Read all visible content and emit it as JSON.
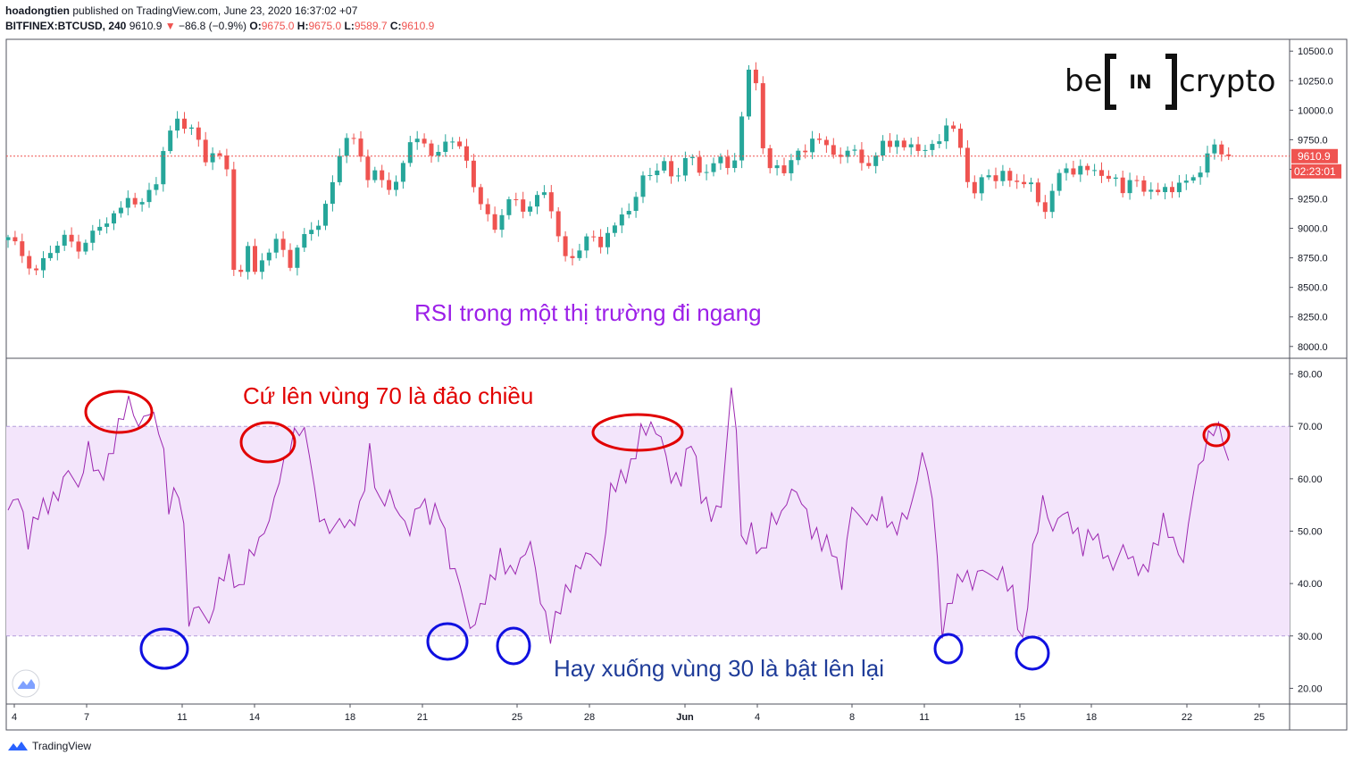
{
  "header": {
    "author": "hoadongtien",
    "published": "published on TradingView.com, June 23, 2020 16:37:02 +07",
    "symbol": "BITFINEX:BTCUSD, 240",
    "last": "9610.9",
    "change_arrow": "▼",
    "change": "−86.8 (−0.9%)",
    "o_label": "O:",
    "o": "9675.0",
    "h_label": "H:",
    "h": "9675.0",
    "l_label": "L:",
    "l": "9589.7",
    "c_label": "C:",
    "c": "9610.9"
  },
  "logo": {
    "left": "be",
    "mid": "IN",
    "right": "crypto"
  },
  "annotations": {
    "title": "RSI trong một thị trường đi ngang",
    "overbought": "Cứ lên vùng 70 là đảo chiều",
    "oversold": "Hay xuống vùng 30 là bật lên lại"
  },
  "footer": {
    "brand": "TradingView"
  },
  "colors": {
    "up": "#26a69a",
    "down": "#ef5350",
    "rsi": "#9c27b0",
    "band": "#f3e5fb",
    "title": "#9c1fe8",
    "red_note": "#e10000",
    "blue_note": "#1f3c99"
  },
  "chart_data": [
    {
      "type": "candlestick",
      "price_label": "9610.9",
      "countdown": "02:23:01",
      "current_price": 9610.9,
      "ylim": [
        7900,
        10600
      ],
      "y_ticks": [
        "10500.0",
        "10250.0",
        "10000.0",
        "9750.0",
        "9500.0",
        "9250.0",
        "9000.0",
        "8750.0",
        "8500.0",
        "8250.0",
        "8000.0"
      ],
      "y_tick_values": [
        10500,
        10250,
        10000,
        9750,
        9500,
        9250,
        9000,
        8750,
        8500,
        8250,
        8000
      ],
      "x_tick_labels": [
        "4",
        "7",
        "11",
        "14",
        "18",
        "21",
        "25",
        "28",
        "Jun",
        "4",
        "8",
        "11",
        "15",
        "18",
        "22",
        "25"
      ],
      "close_path": [
        [
          0,
          8900
        ],
        [
          2,
          8780
        ],
        [
          4,
          8650
        ],
        [
          6,
          8800
        ],
        [
          8,
          8900
        ],
        [
          10,
          8860
        ],
        [
          12,
          8950
        ],
        [
          14,
          9050
        ],
        [
          16,
          9150
        ],
        [
          17,
          9300
        ],
        [
          19,
          9200
        ],
        [
          21,
          9380
        ],
        [
          22,
          9650
        ],
        [
          23,
          9800
        ],
        [
          24,
          9950
        ],
        [
          25,
          9900
        ],
        [
          26,
          9850
        ],
        [
          27,
          9700
        ],
        [
          28,
          9550
        ],
        [
          29,
          9650
        ],
        [
          30,
          9600
        ],
        [
          31,
          9500
        ],
        [
          32,
          8700
        ],
        [
          33,
          8650
        ],
        [
          34,
          8800
        ],
        [
          35,
          8600
        ],
        [
          36,
          8750
        ],
        [
          37,
          8800
        ],
        [
          38,
          8900
        ],
        [
          39,
          8850
        ],
        [
          40,
          8700
        ],
        [
          41,
          8800
        ],
        [
          42,
          8900
        ],
        [
          43,
          9000
        ],
        [
          44,
          9050
        ],
        [
          45,
          9200
        ],
        [
          46,
          9400
        ],
        [
          47,
          9650
        ],
        [
          48,
          9750
        ],
        [
          49,
          9700
        ],
        [
          50,
          9600
        ],
        [
          51,
          9450
        ],
        [
          52,
          9500
        ],
        [
          53,
          9400
        ],
        [
          54,
          9350
        ],
        [
          55,
          9400
        ],
        [
          56,
          9500
        ],
        [
          57,
          9700
        ],
        [
          58,
          9800
        ],
        [
          59,
          9750
        ],
        [
          60,
          9600
        ],
        [
          61,
          9650
        ],
        [
          62,
          9750
        ],
        [
          63,
          9700
        ],
        [
          64,
          9650
        ],
        [
          65,
          9600
        ],
        [
          66,
          9400
        ],
        [
          67,
          9200
        ],
        [
          68,
          9100
        ],
        [
          69,
          9000
        ],
        [
          70,
          9100
        ],
        [
          71,
          9200
        ],
        [
          72,
          9250
        ],
        [
          73,
          9200
        ],
        [
          74,
          9200
        ],
        [
          75,
          9250
        ],
        [
          76,
          9300
        ],
        [
          77,
          9150
        ],
        [
          78,
          8900
        ],
        [
          79,
          8750
        ],
        [
          80,
          8800
        ],
        [
          81,
          8850
        ],
        [
          82,
          8900
        ],
        [
          83,
          8900
        ],
        [
          84,
          8850
        ],
        [
          85,
          8950
        ],
        [
          86,
          9000
        ],
        [
          87,
          9150
        ],
        [
          88,
          9200
        ],
        [
          89,
          9250
        ],
        [
          90,
          9400
        ],
        [
          91,
          9450
        ],
        [
          92,
          9500
        ],
        [
          93,
          9550
        ],
        [
          94,
          9450
        ],
        [
          95,
          9500
        ],
        [
          96,
          9600
        ],
        [
          97,
          9550
        ],
        [
          98,
          9450
        ],
        [
          99,
          9500
        ],
        [
          100,
          9550
        ],
        [
          101,
          9600
        ],
        [
          102,
          9550
        ],
        [
          103,
          9600
        ],
        [
          104,
          9900
        ],
        [
          105,
          10300
        ],
        [
          106,
          10250
        ],
        [
          107,
          9700
        ],
        [
          108,
          9500
        ],
        [
          109,
          9550
        ],
        [
          110,
          9500
        ],
        [
          111,
          9550
        ],
        [
          112,
          9600
        ],
        [
          113,
          9650
        ],
        [
          114,
          9800
        ],
        [
          115,
          9750
        ],
        [
          116,
          9700
        ],
        [
          117,
          9650
        ],
        [
          118,
          9600
        ],
        [
          119,
          9600
        ],
        [
          120,
          9650
        ],
        [
          121,
          9600
        ],
        [
          122,
          9550
        ],
        [
          123,
          9600
        ],
        [
          124,
          9750
        ],
        [
          125,
          9700
        ],
        [
          126,
          9700
        ],
        [
          127,
          9650
        ],
        [
          128,
          9750
        ],
        [
          129,
          9700
        ],
        [
          130,
          9650
        ],
        [
          131,
          9700
        ],
        [
          132,
          9750
        ],
        [
          133,
          9850
        ],
        [
          134,
          9800
        ],
        [
          135,
          9700
        ],
        [
          136,
          9450
        ],
        [
          137,
          9300
        ],
        [
          138,
          9400
        ],
        [
          139,
          9450
        ],
        [
          140,
          9400
        ],
        [
          141,
          9450
        ],
        [
          142,
          9400
        ],
        [
          143,
          9450
        ],
        [
          144,
          9400
        ],
        [
          145,
          9350
        ],
        [
          146,
          9200
        ],
        [
          147,
          9150
        ],
        [
          148,
          9300
        ],
        [
          149,
          9450
        ],
        [
          150,
          9550
        ],
        [
          151,
          9500
        ],
        [
          152,
          9500
        ],
        [
          153,
          9450
        ],
        [
          154,
          9500
        ],
        [
          155,
          9450
        ],
        [
          156,
          9400
        ],
        [
          157,
          9450
        ],
        [
          158,
          9350
        ],
        [
          159,
          9400
        ],
        [
          160,
          9350
        ],
        [
          161,
          9300
        ],
        [
          162,
          9350
        ],
        [
          163,
          9300
        ],
        [
          164,
          9350
        ],
        [
          165,
          9350
        ],
        [
          166,
          9400
        ],
        [
          167,
          9350
        ],
        [
          168,
          9400
        ],
        [
          169,
          9500
        ],
        [
          170,
          9650
        ],
        [
          171,
          9700
        ],
        [
          172,
          9650
        ],
        [
          173,
          9610.9
        ]
      ]
    },
    {
      "type": "line",
      "name": "RSI",
      "ylim": [
        17,
        83
      ],
      "bands": [
        30,
        70
      ],
      "y_ticks": [
        "80.00",
        "70.00",
        "60.00",
        "50.00",
        "40.00",
        "30.00",
        "20.00"
      ],
      "y_tick_values": [
        80,
        70,
        60,
        50,
        40,
        30,
        20
      ],
      "values": [
        [
          0,
          54
        ],
        [
          2,
          57
        ],
        [
          4,
          48
        ],
        [
          6,
          54
        ],
        [
          8,
          55
        ],
        [
          10,
          57
        ],
        [
          12,
          62
        ],
        [
          14,
          58
        ],
        [
          16,
          66
        ],
        [
          18,
          60
        ],
        [
          20,
          63
        ],
        [
          22,
          70
        ],
        [
          24,
          75
        ],
        [
          26,
          70
        ],
        [
          28,
          73
        ],
        [
          30,
          70
        ],
        [
          31,
          64
        ],
        [
          32,
          55
        ],
        [
          34,
          58
        ],
        [
          35,
          50
        ],
        [
          36,
          33
        ],
        [
          38,
          36
        ],
        [
          40,
          32
        ],
        [
          42,
          40
        ],
        [
          44,
          44
        ],
        [
          46,
          38
        ],
        [
          48,
          45
        ],
        [
          50,
          48
        ],
        [
          52,
          52
        ],
        [
          54,
          60
        ],
        [
          56,
          66
        ],
        [
          58,
          70
        ],
        [
          60,
          66
        ],
        [
          61,
          57
        ],
        [
          62,
          53
        ],
        [
          64,
          50
        ],
        [
          66,
          52
        ],
        [
          68,
          51
        ],
        [
          70,
          54
        ],
        [
          72,
          65
        ],
        [
          74,
          55
        ],
        [
          76,
          57
        ],
        [
          78,
          53
        ],
        [
          80,
          50
        ],
        [
          82,
          56
        ],
        [
          84,
          53
        ],
        [
          86,
          54
        ],
        [
          88,
          44
        ],
        [
          90,
          40
        ],
        [
          92,
          31
        ],
        [
          94,
          35
        ],
        [
          96,
          40
        ],
        [
          98,
          45
        ],
        [
          100,
          42
        ],
        [
          102,
          44
        ],
        [
          104,
          48
        ],
        [
          106,
          37
        ],
        [
          108,
          30
        ],
        [
          110,
          36
        ],
        [
          112,
          40
        ],
        [
          114,
          44
        ],
        [
          116,
          46
        ],
        [
          118,
          43
        ],
        [
          120,
          58
        ],
        [
          122,
          60
        ],
        [
          124,
          62
        ],
        [
          126,
          69
        ],
        [
          128,
          70
        ],
        [
          130,
          68
        ],
        [
          132,
          60
        ],
        [
          134,
          60
        ],
        [
          136,
          68
        ],
        [
          138,
          57
        ],
        [
          140,
          53
        ],
        [
          142,
          55
        ],
        [
          144,
          77
        ],
        [
          145,
          70
        ],
        [
          146,
          48
        ],
        [
          148,
          50
        ],
        [
          150,
          45
        ],
        [
          152,
          52
        ],
        [
          154,
          53
        ],
        [
          156,
          58
        ],
        [
          158,
          56
        ],
        [
          160,
          50
        ],
        [
          162,
          48
        ],
        [
          164,
          47
        ],
        [
          166,
          40
        ],
        [
          168,
          55
        ],
        [
          170,
          52
        ],
        [
          172,
          52
        ],
        [
          174,
          55
        ],
        [
          176,
          50
        ],
        [
          178,
          52
        ],
        [
          180,
          55
        ],
        [
          182,
          65
        ],
        [
          184,
          57
        ],
        [
          186,
          31
        ],
        [
          188,
          38
        ],
        [
          190,
          42
        ],
        [
          192,
          40
        ],
        [
          194,
          43
        ],
        [
          196,
          41
        ],
        [
          198,
          42
        ],
        [
          200,
          38
        ],
        [
          202,
          28
        ],
        [
          204,
          46
        ],
        [
          206,
          56
        ],
        [
          208,
          50
        ],
        [
          210,
          54
        ],
        [
          212,
          51
        ],
        [
          214,
          47
        ],
        [
          216,
          50
        ],
        [
          218,
          46
        ],
        [
          220,
          43
        ],
        [
          222,
          47
        ],
        [
          224,
          44
        ],
        [
          226,
          42
        ],
        [
          228,
          46
        ],
        [
          230,
          52
        ],
        [
          232,
          48
        ],
        [
          234,
          44
        ],
        [
          236,
          58
        ],
        [
          238,
          65
        ],
        [
          240,
          70
        ],
        [
          242,
          68
        ],
        [
          243,
          62
        ]
      ]
    }
  ]
}
